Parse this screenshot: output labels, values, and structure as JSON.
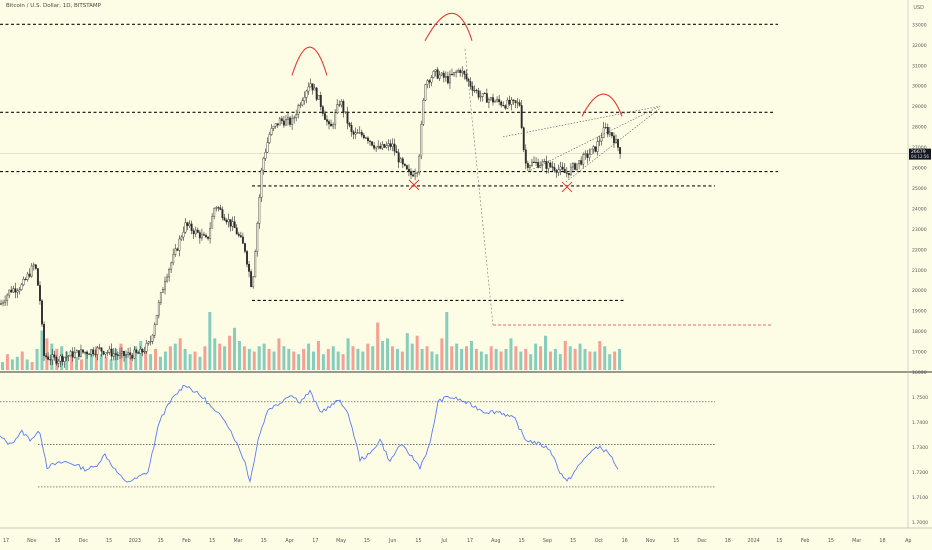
{
  "header": {
    "symbol_title": "Bitcoin / U.S. Dollar, 1D, BITSTAMP",
    "currency": "USD"
  },
  "colors": {
    "background": "#fdfde6",
    "up_candle": "#26a69a",
    "down_candle": "#ef5350",
    "candle_body": "#2b2b2b",
    "pattern": "#e53935",
    "rsi_line": "#5b7cf0",
    "level_line": "#111111",
    "price_tag": "#131722"
  },
  "chart_data": [
    {
      "type": "candlestick",
      "name": "price",
      "symbol": "BTCUSD",
      "exchange": "BITSTAMP",
      "timeframe": "1D",
      "ylim": [
        16000,
        33800
      ],
      "y_scale": "linear",
      "y_ticks": [
        "16000",
        "17000",
        "18000",
        "19000",
        "20000",
        "21000",
        "22000",
        "23000",
        "24000",
        "25000",
        "26000",
        "27000",
        "28000",
        "29000",
        "30000",
        "31000",
        "32000",
        "33000"
      ],
      "x_ticks": [
        "17",
        "Nov",
        "15",
        "Dec",
        "15",
        "2023",
        "15",
        "Feb",
        "15",
        "Mar",
        "15",
        "Apr",
        "17",
        "May",
        "15",
        "Jun",
        "15",
        "Jul",
        "17",
        "Aug",
        "15",
        "Sep",
        "15",
        "Oct",
        "16",
        "Nov",
        "15",
        "Dec",
        "18",
        "2024",
        "15",
        "Feb",
        "15",
        "Mar",
        "18",
        "Ap"
      ],
      "current_price": "26679",
      "countdown": "04:12:56",
      "close_path": [
        [
          0,
          19300
        ],
        [
          10,
          20000
        ],
        [
          22,
          20200
        ],
        [
          35,
          21300
        ],
        [
          40,
          19500
        ],
        [
          44,
          16800
        ],
        [
          55,
          16600
        ],
        [
          75,
          16900
        ],
        [
          100,
          17100
        ],
        [
          120,
          16800
        ],
        [
          140,
          16900
        ],
        [
          150,
          17400
        ],
        [
          165,
          20600
        ],
        [
          175,
          21800
        ],
        [
          185,
          23200
        ],
        [
          200,
          22700
        ],
        [
          207,
          22400
        ],
        [
          215,
          24200
        ],
        [
          225,
          23600
        ],
        [
          235,
          23000
        ],
        [
          245,
          22000
        ],
        [
          252,
          20100
        ],
        [
          262,
          26200
        ],
        [
          270,
          27700
        ],
        [
          280,
          28300
        ],
        [
          292,
          28200
        ],
        [
          300,
          29200
        ],
        [
          310,
          30200
        ],
        [
          320,
          29200
        ],
        [
          330,
          27800
        ],
        [
          340,
          29300
        ],
        [
          352,
          27600
        ],
        [
          365,
          27600
        ],
        [
          378,
          26900
        ],
        [
          392,
          27100
        ],
        [
          402,
          26100
        ],
        [
          410,
          25600
        ],
        [
          418,
          26000
        ],
        [
          425,
          30200
        ],
        [
          435,
          30600
        ],
        [
          448,
          30300
        ],
        [
          460,
          30800
        ],
        [
          468,
          30200
        ],
        [
          480,
          29500
        ],
        [
          492,
          29300
        ],
        [
          505,
          29100
        ],
        [
          520,
          29100
        ],
        [
          525,
          26200
        ],
        [
          540,
          26200
        ],
        [
          555,
          26000
        ],
        [
          566,
          25700
        ],
        [
          580,
          26300
        ],
        [
          595,
          26900
        ],
        [
          605,
          27900
        ],
        [
          612,
          27600
        ],
        [
          618,
          27000
        ],
        [
          622,
          26700
        ]
      ],
      "horizontal_levels": [
        {
          "price": 33000,
          "style": "dashed",
          "from_date": "Oct 2022",
          "to_date": "Nov 2023"
        },
        {
          "price": 28700,
          "style": "dashed",
          "from_date": "Oct 2022",
          "to_date": "Nov 2023"
        },
        {
          "price": 25800,
          "style": "dashed",
          "from_date": "Oct 2022",
          "to_date": "Nov 2023"
        },
        {
          "price": 25100,
          "style": "dashed",
          "from_date": "Mar 2023",
          "to_date": "Nov 2023"
        },
        {
          "price": 19500,
          "style": "dashed",
          "from_date": "Mar 2023",
          "to_date": "Oct 2023"
        },
        {
          "price": 18300,
          "style": "dashed",
          "color": "pattern",
          "from_date": "Aug 2023",
          "to_date": "Dec 2023"
        }
      ],
      "annotations": [
        "head-and-shoulders arcs over Apr and Jul highs",
        "X markers at Jun and Sep lows",
        "rising wedge lines converging after Oct",
        "dotted projection line from Jul high to Aug level"
      ]
    },
    {
      "type": "bar",
      "name": "volume",
      "colors": [
        "up_candle",
        "down_candle"
      ],
      "values": [
        3,
        6,
        4,
        5,
        7,
        4,
        3,
        8,
        15,
        12,
        10,
        8,
        9,
        7,
        6,
        5,
        4,
        7,
        8,
        9,
        6,
        5,
        4,
        8,
        10,
        6,
        5,
        9,
        11,
        7,
        6,
        8,
        5,
        7,
        9,
        10,
        12,
        8,
        6,
        7,
        5,
        9,
        22,
        12,
        10,
        9,
        13,
        16,
        11,
        9,
        8,
        7,
        9,
        10,
        8,
        7,
        12,
        9,
        8,
        7,
        6,
        8,
        10,
        7,
        11,
        6,
        8,
        9,
        7,
        6,
        12,
        9,
        8,
        7,
        10,
        9,
        18,
        11,
        12,
        9,
        8,
        7,
        14,
        10,
        13,
        8,
        9,
        7,
        6,
        12,
        22,
        9,
        10,
        8,
        9,
        11,
        8,
        7,
        6,
        9,
        8,
        7,
        8,
        12,
        9,
        7,
        8,
        6,
        10,
        9,
        13,
        7,
        8,
        6,
        11,
        9,
        8,
        10,
        8,
        7,
        7,
        11,
        9,
        6,
        7,
        8
      ]
    },
    {
      "type": "line",
      "name": "indicator",
      "ylim": [
        1.7,
        1.7575
      ],
      "y_ticks": [
        "1.7000",
        "1.7100",
        "1.7200",
        "1.7300",
        "1.7400",
        "1.7500"
      ],
      "levels": [
        1.748,
        1.731,
        1.714
      ],
      "points": [
        [
          0,
          1.734
        ],
        [
          10,
          1.731
        ],
        [
          22,
          1.736
        ],
        [
          30,
          1.733
        ],
        [
          40,
          1.736
        ],
        [
          47,
          1.722
        ],
        [
          55,
          1.723
        ],
        [
          65,
          1.724
        ],
        [
          75,
          1.723
        ],
        [
          85,
          1.721
        ],
        [
          95,
          1.722
        ],
        [
          105,
          1.727
        ],
        [
          115,
          1.721
        ],
        [
          125,
          1.716
        ],
        [
          135,
          1.717
        ],
        [
          148,
          1.72
        ],
        [
          160,
          1.741
        ],
        [
          172,
          1.749
        ],
        [
          185,
          1.755
        ],
        [
          195,
          1.752
        ],
        [
          205,
          1.749
        ],
        [
          215,
          1.744
        ],
        [
          225,
          1.741
        ],
        [
          235,
          1.733
        ],
        [
          245,
          1.724
        ],
        [
          250,
          1.716
        ],
        [
          258,
          1.733
        ],
        [
          268,
          1.745
        ],
        [
          278,
          1.747
        ],
        [
          290,
          1.751
        ],
        [
          300,
          1.748
        ],
        [
          310,
          1.752
        ],
        [
          320,
          1.744
        ],
        [
          330,
          1.746
        ],
        [
          340,
          1.749
        ],
        [
          350,
          1.741
        ],
        [
          360,
          1.725
        ],
        [
          370,
          1.727
        ],
        [
          380,
          1.733
        ],
        [
          390,
          1.724
        ],
        [
          400,
          1.731
        ],
        [
          410,
          1.727
        ],
        [
          420,
          1.722
        ],
        [
          430,
          1.731
        ],
        [
          438,
          1.748
        ],
        [
          448,
          1.75
        ],
        [
          458,
          1.749
        ],
        [
          470,
          1.747
        ],
        [
          485,
          1.744
        ],
        [
          500,
          1.744
        ],
        [
          515,
          1.741
        ],
        [
          525,
          1.733
        ],
        [
          540,
          1.731
        ],
        [
          550,
          1.729
        ],
        [
          560,
          1.72
        ],
        [
          567,
          1.716
        ],
        [
          578,
          1.722
        ],
        [
          590,
          1.728
        ],
        [
          600,
          1.73
        ],
        [
          610,
          1.727
        ],
        [
          618,
          1.721
        ]
      ]
    }
  ]
}
